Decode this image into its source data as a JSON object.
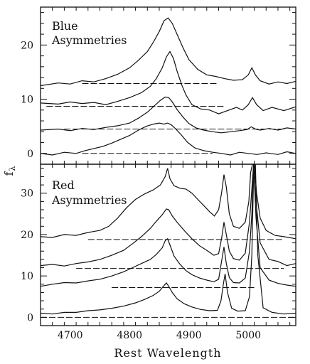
{
  "chart_data": [
    {
      "type": "line",
      "panel_title": "Blue\nAsymmetries",
      "ylabel": "fλ",
      "xlim": [
        4650,
        5080
      ],
      "ylim": [
        -2,
        27
      ],
      "yticks": [
        0,
        10,
        20
      ],
      "grid": false,
      "series": [
        {
          "x": [
            4650,
            4680,
            4700,
            4720,
            4740,
            4760,
            4780,
            4800,
            4815,
            4830,
            4840,
            4850,
            4858,
            4865,
            4872,
            4880,
            4890,
            4900,
            4915,
            4930,
            4945,
            4960,
            4975,
            4990,
            5000,
            5006,
            5012,
            5020,
            5035,
            5050,
            5065,
            5080
          ],
          "y": [
            12.5,
            13.0,
            12.8,
            13.4,
            13.2,
            13.8,
            14.6,
            15.8,
            17.2,
            18.8,
            20.5,
            22.5,
            24.5,
            25.0,
            24.0,
            22.0,
            19.5,
            17.3,
            15.5,
            14.5,
            14.2,
            13.8,
            13.5,
            13.6,
            14.5,
            15.8,
            14.5,
            13.4,
            12.8,
            13.2,
            12.9,
            13.3
          ],
          "baseline": {
            "x": [
              4720,
              4950
            ],
            "y": 12.9
          }
        },
        {
          "x": [
            4650,
            4680,
            4700,
            4720,
            4740,
            4760,
            4780,
            4800,
            4820,
            4835,
            4845,
            4855,
            4862,
            4868,
            4874,
            4880,
            4888,
            4895,
            4905,
            4920,
            4935,
            4950,
            4965,
            4980,
            4990,
            5000,
            5007,
            5014,
            5025,
            5040,
            5060,
            5080
          ],
          "y": [
            9.3,
            9.1,
            9.5,
            9.2,
            9.4,
            9.0,
            9.6,
            10.3,
            11.2,
            12.4,
            13.8,
            15.8,
            17.8,
            18.8,
            17.5,
            15.2,
            12.6,
            10.8,
            9.0,
            8.2,
            8.0,
            7.3,
            7.9,
            8.5,
            8.0,
            9.0,
            10.3,
            9.0,
            7.9,
            8.5,
            7.9,
            8.6
          ],
          "baseline": {
            "x": [
              4660,
              4960
            ],
            "y": 8.7
          }
        },
        {
          "x": [
            4650,
            4680,
            4700,
            4720,
            4740,
            4760,
            4780,
            4800,
            4815,
            4830,
            4842,
            4852,
            4860,
            4866,
            4872,
            4880,
            4890,
            4900,
            4912,
            4925,
            4940,
            4955,
            4970,
            4985,
            4998,
            5005,
            5012,
            5020,
            5035,
            5050,
            5065,
            5080
          ],
          "y": [
            4.3,
            4.5,
            4.2,
            4.6,
            4.4,
            4.8,
            5.1,
            5.6,
            6.5,
            7.6,
            8.8,
            9.8,
            10.4,
            10.3,
            9.5,
            8.1,
            6.7,
            5.5,
            4.7,
            4.3,
            4.0,
            3.8,
            4.0,
            4.2,
            4.4,
            4.9,
            4.5,
            4.3,
            4.6,
            4.3,
            4.7,
            4.5
          ],
          "baseline": {
            "x": [
              4690,
              5060
            ],
            "y": 4.5
          }
        },
        {
          "x": [
            4650,
            4670,
            4690,
            4710,
            4725,
            4740,
            4755,
            4770,
            4785,
            4800,
            4815,
            4828,
            4840,
            4850,
            4858,
            4864,
            4870,
            4878,
            4888,
            4898,
            4910,
            4925,
            4940,
            4955,
            4970,
            4985,
            5000,
            5015,
            5030,
            5050,
            5065,
            5080
          ],
          "y": [
            0.0,
            -0.3,
            0.2,
            0.0,
            0.5,
            0.9,
            1.3,
            1.9,
            2.6,
            3.3,
            4.3,
            5.0,
            5.4,
            5.6,
            5.4,
            5.6,
            5.3,
            4.5,
            3.3,
            2.0,
            1.0,
            0.5,
            0.2,
            0.0,
            -0.3,
            0.2,
            0.0,
            -0.2,
            0.1,
            -0.2,
            0.3,
            0.0
          ],
          "baseline": {
            "x": [
              4720,
              4940
            ],
            "y": 0.0
          }
        }
      ]
    },
    {
      "type": "line",
      "panel_title": "Red\nAsymmetries",
      "xlabel": "Rest Wavelength",
      "xlim": [
        4650,
        5080
      ],
      "xticks": [
        4700,
        4800,
        4900,
        5000
      ],
      "ylim": [
        -2,
        37
      ],
      "yticks": [
        0,
        10,
        20,
        30
      ],
      "grid": false,
      "series": [
        {
          "x": [
            4650,
            4670,
            4690,
            4710,
            4730,
            4750,
            4765,
            4780,
            4795,
            4810,
            4825,
            4840,
            4852,
            4860,
            4864,
            4868,
            4875,
            4885,
            4895,
            4905,
            4915,
            4925,
            4935,
            4943,
            4950,
            4955,
            4959,
            4963,
            4968,
            4975,
            4985,
            4995,
            5001,
            5004,
            5007,
            5010,
            5014,
            5020,
            5030,
            5045,
            5060,
            5080
          ],
          "y": [
            19.5,
            19.3,
            20.0,
            19.8,
            20.5,
            21.0,
            22.0,
            24.0,
            26.5,
            28.5,
            29.8,
            30.8,
            32.0,
            34.0,
            36.0,
            33.5,
            31.8,
            31.2,
            31.0,
            30.0,
            28.5,
            27.0,
            25.5,
            24.5,
            26.0,
            30.0,
            34.5,
            31.5,
            25.0,
            22.0,
            21.5,
            23.0,
            28.0,
            35.0,
            37.0,
            37.0,
            30.0,
            24.0,
            21.0,
            19.8,
            19.5,
            19.0
          ],
          "baseline": {
            "x": [
              4730,
              5060
            ],
            "y": 18.8
          }
        },
        {
          "x": [
            4650,
            4670,
            4690,
            4710,
            4730,
            4750,
            4770,
            4790,
            4805,
            4820,
            4835,
            4845,
            4855,
            4862,
            4866,
            4872,
            4880,
            4892,
            4905,
            4918,
            4930,
            4942,
            4950,
            4955,
            4959,
            4963,
            4968,
            4975,
            4985,
            4995,
            5002,
            5006,
            5009,
            5013,
            5020,
            5035,
            5050,
            5065,
            5080
          ],
          "y": [
            12.5,
            12.8,
            12.4,
            13.0,
            13.4,
            14.0,
            15.0,
            16.2,
            17.8,
            19.5,
            21.5,
            23.2,
            24.8,
            26.2,
            26.0,
            24.5,
            23.0,
            21.0,
            19.0,
            17.3,
            16.2,
            15.0,
            15.4,
            19.0,
            23.0,
            20.0,
            16.0,
            14.2,
            13.8,
            15.5,
            23.0,
            31.0,
            37.0,
            28.0,
            18.0,
            14.0,
            13.5,
            12.5,
            13.0
          ],
          "baseline": {
            "x": [
              4710,
              5060
            ],
            "y": 11.8
          }
        },
        {
          "x": [
            4650,
            4670,
            4690,
            4710,
            4730,
            4750,
            4770,
            4790,
            4805,
            4820,
            4835,
            4845,
            4855,
            4860,
            4864,
            4868,
            4875,
            4885,
            4895,
            4905,
            4918,
            4930,
            4942,
            4950,
            4955,
            4959,
            4963,
            4968,
            4975,
            4985,
            4995,
            5002,
            5006,
            5009,
            5013,
            5020,
            5035,
            5050,
            5065,
            5080
          ],
          "y": [
            7.5,
            8.0,
            8.4,
            8.3,
            8.8,
            9.2,
            10.0,
            11.0,
            12.0,
            13.0,
            14.0,
            15.2,
            16.8,
            18.5,
            19.0,
            17.5,
            14.8,
            12.8,
            11.3,
            10.3,
            9.5,
            9.0,
            8.6,
            9.2,
            13.5,
            17.0,
            13.0,
            9.6,
            8.4,
            8.3,
            9.5,
            16.0,
            25.0,
            37.0,
            24.0,
            12.0,
            9.0,
            8.2,
            7.8,
            7.5
          ],
          "baseline": {
            "x": [
              4770,
              5010
            ],
            "y": 7.2
          }
        },
        {
          "x": [
            4650,
            4670,
            4690,
            4710,
            4730,
            4750,
            4770,
            4790,
            4810,
            4825,
            4840,
            4850,
            4857,
            4862,
            4866,
            4872,
            4880,
            4892,
            4905,
            4920,
            4935,
            4948,
            4954,
            4958,
            4961,
            4965,
            4972,
            4982,
            4995,
            5002,
            5006,
            5009,
            5012,
            5016,
            5025,
            5040,
            5060,
            5080
          ],
          "y": [
            1.0,
            0.8,
            1.2,
            1.2,
            1.6,
            1.8,
            2.2,
            2.7,
            3.5,
            4.3,
            5.3,
            6.3,
            7.5,
            8.3,
            7.5,
            6.0,
            4.5,
            3.3,
            2.5,
            1.9,
            1.6,
            1.7,
            4.0,
            8.0,
            10.5,
            6.0,
            2.2,
            1.5,
            1.6,
            5.0,
            15.0,
            35.0,
            37.0,
            15.0,
            2.3,
            1.2,
            0.8,
            1.0
          ],
          "baseline": {
            "x": [
              4650,
              5080
            ],
            "y": 0.0
          }
        }
      ]
    }
  ]
}
